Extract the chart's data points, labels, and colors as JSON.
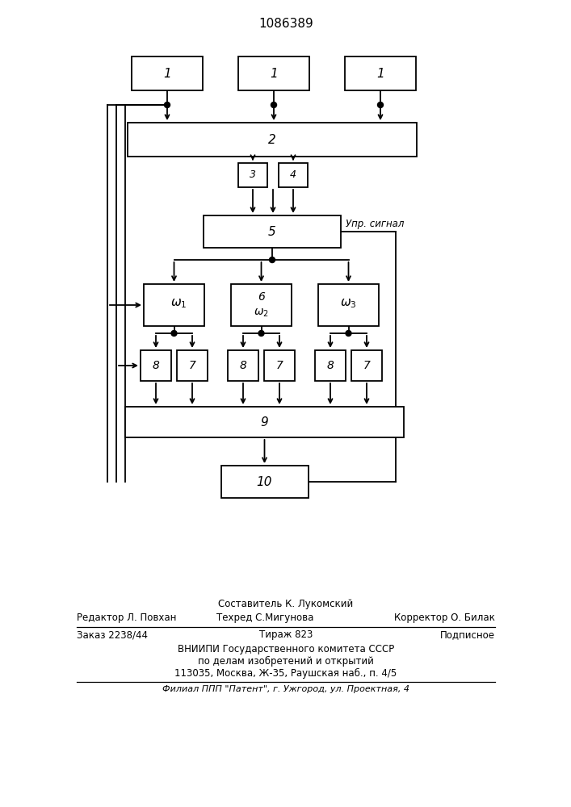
{
  "title": "1086389",
  "bg_color": "#ffffff",
  "line_color": "#000000",
  "box_color": "#ffffff",
  "footer_lines": [
    "Составитель К. Лукомский",
    "Редактор Л. Повхан",
    "Техред С.Мигунова",
    "Корректор О. Билак",
    "Заказ 2238/44",
    "Тираж 823",
    "Подписное",
    "ВНИИПИ Государственного комитета СССР",
    "по делам изобретений и открытий",
    "113035, Москва, Ж-35, Раушская наб., п. 4/5",
    "Филиал ППП \"Патент\", г. Ужгород, ул. Проектная, 4"
  ],
  "upr_signal": "Упр. сигнал"
}
